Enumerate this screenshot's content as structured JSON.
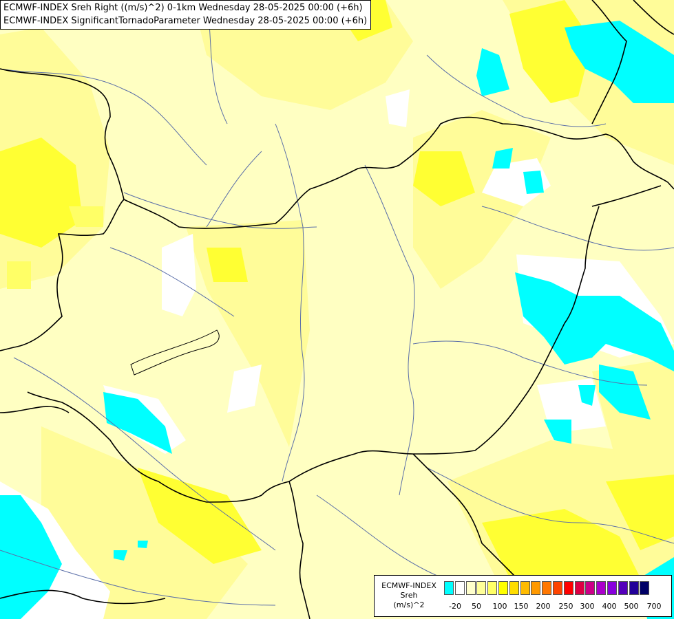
{
  "title": {
    "line1": "ECMWF-INDEX Sreh Right ((m/s)^2) 0-1km Wednesday 28-05-2025 00:00 (+6h)",
    "line2": "ECMWF-INDEX SignificantTornadoParameter Wednesday 28-05-2025 00:00 (+6h)"
  },
  "legend": {
    "line1": "ECMWF-INDEX",
    "line2": "Sreh",
    "line3": "(m/s)^2",
    "colors": [
      "#00ffff",
      "#ffffff",
      "#ffffcc",
      "#ffff99",
      "#ffff66",
      "#ffff00",
      "#ffdd00",
      "#ffbb00",
      "#ff9900",
      "#ff7700",
      "#ff4400",
      "#ff0000",
      "#dd0044",
      "#cc0088",
      "#aa00cc",
      "#8800dd",
      "#5500bb",
      "#220099",
      "#000066"
    ],
    "ticks": [
      "-20",
      "50",
      "100",
      "150",
      "200",
      "250",
      "300",
      "400",
      "500",
      "700"
    ]
  },
  "colors": {
    "pale": "#ffffc2",
    "light": "#fffc99",
    "mid": "#ffff66",
    "strong": "#ffff00",
    "cyan": "#00ffff",
    "white": "#ffffff",
    "border": "#000000",
    "river": "#5a6ea8"
  }
}
